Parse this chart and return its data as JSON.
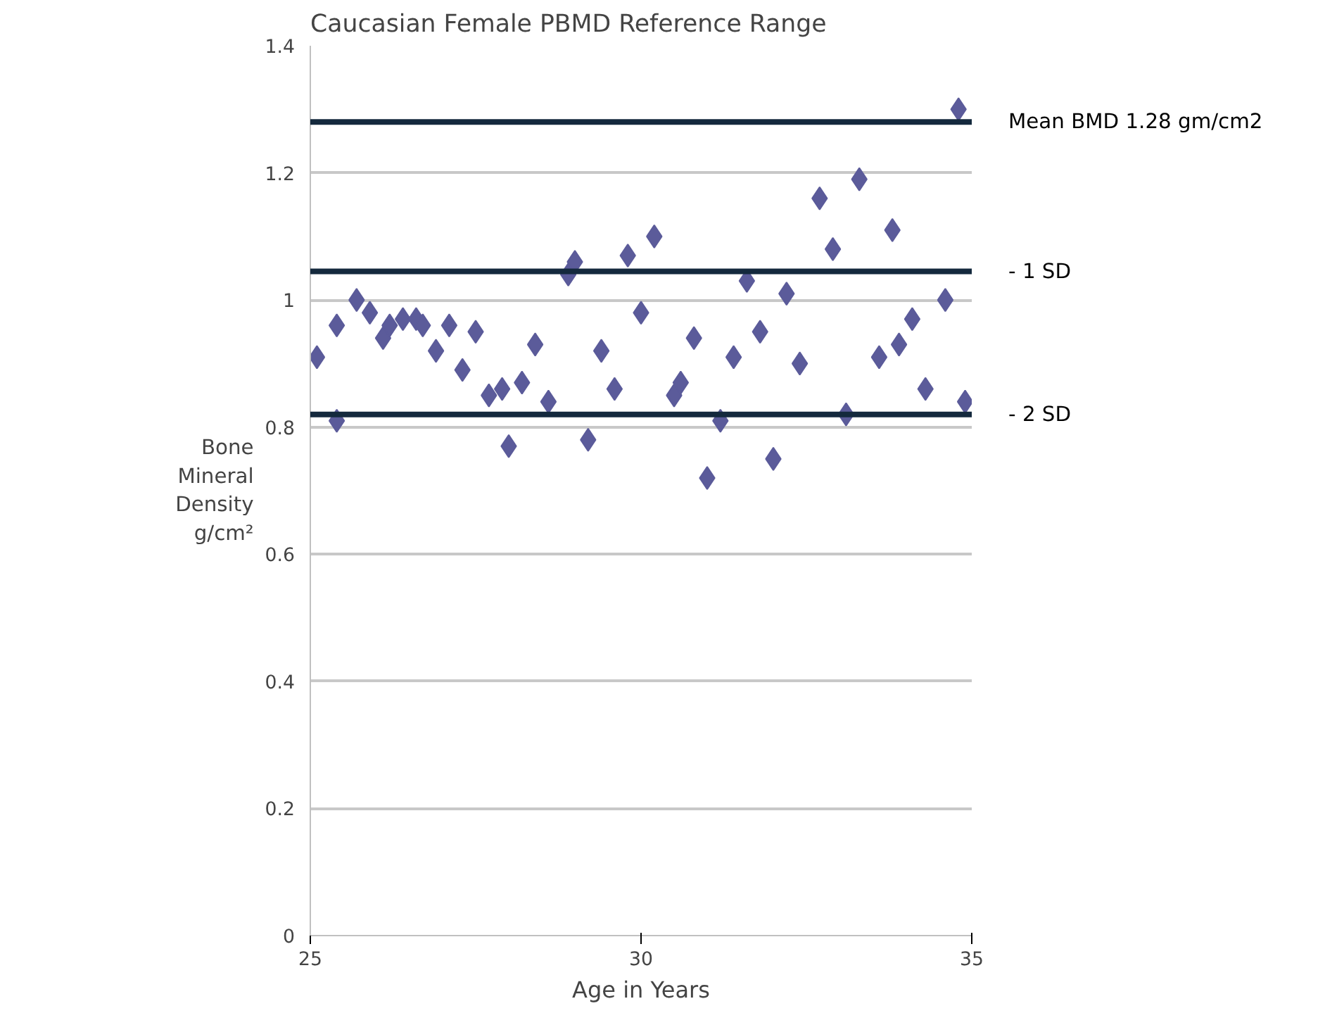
{
  "chart_data": {
    "type": "scatter",
    "title": "Caucasian Female PBMD Reference Range",
    "xlabel": "Age in Years",
    "ylabel": "Bone\nMineral\nDensity\ng/cm²",
    "x": [
      25.1,
      25.4,
      25.4,
      25.7,
      25.9,
      26.1,
      26.2,
      26.4,
      26.6,
      26.7,
      26.9,
      27.1,
      27.3,
      27.5,
      27.7,
      27.9,
      28.0,
      28.2,
      28.4,
      28.6,
      28.9,
      29.0,
      29.2,
      29.4,
      29.6,
      29.8,
      30.0,
      30.2,
      30.5,
      30.6,
      30.8,
      31.0,
      31.2,
      31.4,
      31.6,
      31.8,
      32.0,
      32.2,
      32.4,
      32.7,
      32.9,
      33.1,
      33.3,
      33.6,
      33.8,
      33.9,
      34.1,
      34.3,
      34.6,
      34.8,
      34.9
    ],
    "series": [
      {
        "color": "#5b5b9a",
        "values": [
          0.91,
          0.96,
          0.81,
          1.0,
          0.98,
          0.94,
          0.96,
          0.97,
          0.97,
          0.96,
          0.92,
          0.96,
          0.89,
          0.95,
          0.85,
          0.86,
          0.77,
          0.87,
          0.93,
          0.84,
          1.04,
          1.06,
          0.78,
          0.92,
          0.86,
          1.07,
          0.98,
          1.1,
          0.85,
          0.87,
          0.94,
          0.72,
          0.81,
          0.91,
          1.03,
          0.95,
          0.75,
          1.01,
          0.9,
          1.16,
          1.08,
          0.82,
          1.19,
          0.91,
          1.11,
          0.93,
          0.97,
          0.86,
          1.0,
          1.3,
          0.84
        ]
      }
    ],
    "xlim": [
      25,
      35
    ],
    "ylim": [
      0,
      1.4
    ],
    "xticks": [
      25,
      30,
      35
    ],
    "yticks": [
      0,
      0.2,
      0.4,
      0.6,
      0.8,
      1,
      1.2,
      1.4
    ],
    "ref_lines": [
      {
        "axis": "y",
        "value": 1.28,
        "label": "Mean BMD 1.28 gm/cm2",
        "color": "#14293d"
      },
      {
        "axis": "y",
        "value": 1.045,
        "label": "- 1 SD",
        "color": "#14293d"
      },
      {
        "axis": "y",
        "value": 0.82,
        "label": "- 2 SD",
        "color": "#14293d"
      }
    ],
    "grid": "y",
    "marker": "diamond"
  }
}
